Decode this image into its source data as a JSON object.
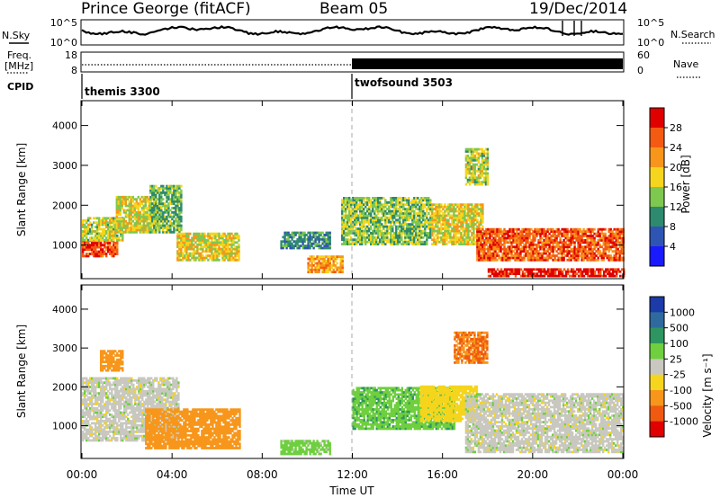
{
  "header": {
    "site": "Prince George (fitACF)",
    "beam": "Beam 05",
    "date": "19/Dec/2014"
  },
  "meta_panels": {
    "nsky_label": "N.Sky",
    "nsky_ticks": [
      "10^5",
      "10^0"
    ],
    "nsearch_label": "N.Search",
    "nsearch_ticks": [
      "10^5",
      "10^0"
    ],
    "freq_label_line1": "Freq.",
    "freq_label_line2": "[MHz]",
    "freq_ticks": [
      "18",
      "8"
    ],
    "nave_label": "Nave",
    "nave_ticks": [
      "60",
      "0"
    ],
    "cpid_label": "CPID",
    "cpid_programs": [
      {
        "name": "themis 3300",
        "start_hour": 0
      },
      {
        "name": "twofsound 3503",
        "start_hour": 12
      }
    ]
  },
  "axes": {
    "xlabel": "Time UT",
    "x_ticks": [
      "00:00",
      "04:00",
      "08:00",
      "12:00",
      "16:00",
      "20:00",
      "00:00"
    ],
    "x_range_hours": [
      0,
      24
    ],
    "ylabel": "Slant Range [km]",
    "y_ticks": [
      "1000",
      "2000",
      "3000",
      "4000"
    ],
    "ylim_km": [
      180,
      4600
    ]
  },
  "colorbars": {
    "power": {
      "label": "Power [dB]",
      "ticks": [
        "4",
        "8",
        "12",
        "16",
        "20",
        "24",
        "28"
      ],
      "colors": [
        "#1a1aff",
        "#2f55b4",
        "#2e8a6e",
        "#7ec850",
        "#f5d51d",
        "#f7961b",
        "#f45a12",
        "#e00000"
      ]
    },
    "velocity": {
      "label": "Velocity [m s⁻¹]",
      "ticks": [
        "1000",
        "500",
        "100",
        "25",
        "-25",
        "-100",
        "-500",
        "-1000"
      ],
      "colors": [
        "#1c3aa8",
        "#2f6a9e",
        "#2e9560",
        "#6fcf3f",
        "#c8c8c0",
        "#f5d51d",
        "#f7961b",
        "#ef5a10",
        "#e00000"
      ]
    }
  },
  "chart_data": [
    {
      "type": "heatmap",
      "title": "",
      "quantity": "Power [dB]",
      "xlabel": "Time UT",
      "ylabel": "Slant Range [km]",
      "x_range": [
        0,
        24
      ],
      "ylim": [
        180,
        4600
      ],
      "regions": [
        {
          "t0": 0.0,
          "t1": 1.6,
          "r0": 700,
          "r1": 1100,
          "value": 27
        },
        {
          "t0": 0.0,
          "t1": 1.8,
          "r0": 1100,
          "r1": 1700,
          "value": 16
        },
        {
          "t0": 1.5,
          "t1": 3.3,
          "r0": 1300,
          "r1": 2200,
          "value": 17
        },
        {
          "t0": 3.0,
          "t1": 4.4,
          "r0": 1300,
          "r1": 2500,
          "value": 13
        },
        {
          "t0": 4.2,
          "t1": 7.0,
          "r0": 600,
          "r1": 1300,
          "value": 18
        },
        {
          "t0": 8.8,
          "t1": 11.0,
          "r0": 900,
          "r1": 1300,
          "value": 10
        },
        {
          "t0": 10.0,
          "t1": 11.6,
          "r0": 300,
          "r1": 700,
          "value": 22
        },
        {
          "t0": 11.5,
          "t1": 15.5,
          "r0": 1000,
          "r1": 2200,
          "value": 14
        },
        {
          "t0": 15.5,
          "t1": 17.8,
          "r0": 1000,
          "r1": 2000,
          "value": 18
        },
        {
          "t0": 17.5,
          "t1": 24.0,
          "r0": 600,
          "r1": 1400,
          "value": 26
        },
        {
          "t0": 18.0,
          "t1": 24.0,
          "r0": 200,
          "r1": 400,
          "value": 30
        },
        {
          "t0": 17.0,
          "t1": 18.0,
          "r0": 2500,
          "r1": 3400,
          "value": 16
        }
      ]
    },
    {
      "type": "heatmap",
      "title": "",
      "quantity": "Velocity [m s⁻¹]",
      "xlabel": "Time UT",
      "ylabel": "Slant Range [km]",
      "x_range": [
        0,
        24
      ],
      "ylim": [
        180,
        4600
      ],
      "regions": [
        {
          "t0": 0.0,
          "t1": 4.3,
          "r0": 600,
          "r1": 2200,
          "value": 0
        },
        {
          "t0": 0.8,
          "t1": 1.8,
          "r0": 2400,
          "r1": 2900,
          "value": -400
        },
        {
          "t0": 2.8,
          "t1": 7.0,
          "r0": 400,
          "r1": 1400,
          "value": -200
        },
        {
          "t0": 8.8,
          "t1": 11.0,
          "r0": 250,
          "r1": 600,
          "value": 50
        },
        {
          "t0": 12.0,
          "t1": 16.5,
          "r0": 900,
          "r1": 2000,
          "value": 80
        },
        {
          "t0": 15.0,
          "t1": 17.5,
          "r0": 1100,
          "r1": 2000,
          "value": -60
        },
        {
          "t0": 16.5,
          "t1": 18.0,
          "r0": 2600,
          "r1": 3400,
          "value": -500
        },
        {
          "t0": 17.0,
          "t1": 24.0,
          "r0": 300,
          "r1": 1800,
          "value": 0
        }
      ]
    }
  ]
}
